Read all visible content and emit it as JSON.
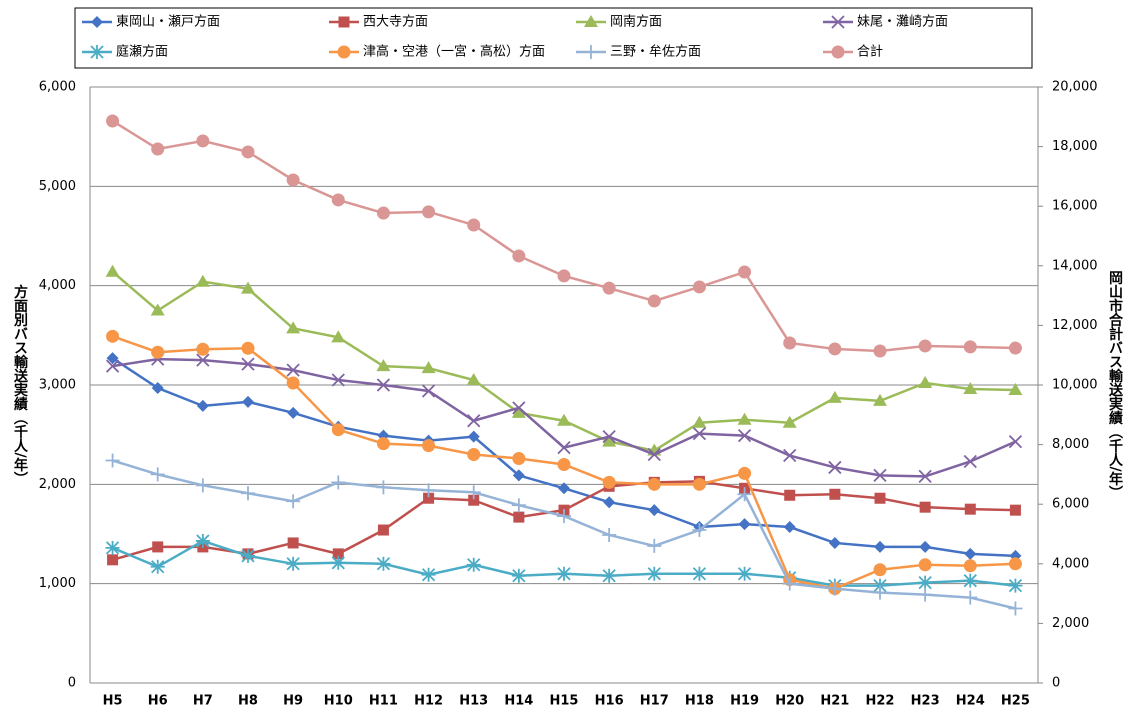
{
  "chart_data": {
    "type": "line",
    "categories": [
      "H5",
      "H6",
      "H7",
      "H8",
      "H9",
      "H10",
      "H11",
      "H12",
      "H13",
      "H14",
      "H15",
      "H16",
      "H17",
      "H18",
      "H19",
      "H20",
      "H21",
      "H22",
      "H23",
      "H24",
      "H25"
    ],
    "ylabel": "方面別バス輸送実績（千人/年）",
    "y2label": "岡山市合計バス輸送実績（千人/年）",
    "ylim": [
      0,
      6000
    ],
    "yticks": [
      0,
      {
        "value": 1000,
        "label": "1,000"
      },
      {
        "value": 2000,
        "label": "2,000"
      },
      {
        "value": 3000,
        "label": "3,000"
      },
      {
        "value": 4000,
        "label": "4,000"
      },
      {
        "value": 5000,
        "label": "5,000"
      },
      {
        "value": 6000,
        "label": "6,000"
      }
    ],
    "y2lim": [
      0,
      20000
    ],
    "y2ticks": [
      0,
      {
        "value": 2000,
        "label": "2,000"
      },
      {
        "value": 4000,
        "label": "4,000"
      },
      {
        "value": 6000,
        "label": "6,000"
      },
      {
        "value": 8000,
        "label": "8,000"
      },
      {
        "value": 10000,
        "label": "10,000"
      },
      {
        "value": 12000,
        "label": "12,000"
      },
      {
        "value": 14000,
        "label": "14,000"
      },
      {
        "value": 16000,
        "label": "16,000"
      },
      {
        "value": 18000,
        "label": "18,000"
      },
      {
        "value": 20000,
        "label": "20,000"
      }
    ],
    "grid": true,
    "legend": "top",
    "series": [
      {
        "name": "東岡山・瀬戸方面",
        "color": "#4472c4",
        "marker": "diamond",
        "values": [
          3270,
          2970,
          2790,
          2830,
          2720,
          2580,
          2490,
          2440,
          2480,
          2090,
          1960,
          1820,
          1740,
          1570,
          1600,
          1570,
          1410,
          1370,
          1370,
          1300,
          1280
        ]
      },
      {
        "name": "西大寺方面",
        "color": "#c0504d",
        "marker": "square",
        "values": [
          1240,
          1370,
          1370,
          1300,
          1410,
          1300,
          1540,
          1860,
          1840,
          1670,
          1740,
          1980,
          2020,
          2030,
          1960,
          1890,
          1900,
          1860,
          1770,
          1750,
          1740
        ]
      },
      {
        "name": "岡南方面",
        "color": "#9bbb59",
        "marker": "triangle",
        "values": [
          4140,
          3750,
          4040,
          3970,
          3570,
          3480,
          3190,
          3170,
          3050,
          2720,
          2640,
          2430,
          2340,
          2620,
          2650,
          2620,
          2870,
          2840,
          3020,
          2960,
          2950
        ]
      },
      {
        "name": "妹尾・灘崎方面",
        "color": "#8064a2",
        "marker": "x",
        "values": [
          3190,
          3260,
          3250,
          3210,
          3150,
          3050,
          3000,
          2940,
          2640,
          2770,
          2370,
          2480,
          2300,
          2510,
          2490,
          2290,
          2170,
          2090,
          2080,
          2230,
          2430
        ]
      },
      {
        "name": "庭瀬方面",
        "color": "#4bacc6",
        "marker": "asterisk",
        "values": [
          1360,
          1170,
          1430,
          1280,
          1200,
          1210,
          1200,
          1090,
          1190,
          1080,
          1100,
          1080,
          1100,
          1100,
          1100,
          1060,
          980,
          980,
          1010,
          1030,
          980
        ]
      },
      {
        "name": "津高・空港（一宮・高松）方面",
        "color": "#f79646",
        "marker": "circle",
        "values": [
          3490,
          3330,
          3360,
          3370,
          3020,
          2550,
          2410,
          2390,
          2300,
          2260,
          2200,
          2020,
          2000,
          2000,
          2110,
          1040,
          950,
          1140,
          1190,
          1180,
          1200
        ]
      },
      {
        "name": "三野・牟佐方面",
        "color": "#95b3d7",
        "marker": "plus",
        "values": [
          2240,
          2100,
          1990,
          1910,
          1830,
          2020,
          1970,
          1940,
          1920,
          1790,
          1680,
          1490,
          1380,
          1540,
          1900,
          1000,
          950,
          910,
          890,
          860,
          750
        ]
      },
      {
        "name": "合計",
        "color": "#d99694",
        "marker": "circle",
        "axis": "y2",
        "values": [
          18860,
          17920,
          18190,
          17820,
          16880,
          16210,
          15770,
          15810,
          15370,
          14330,
          13660,
          13250,
          12820,
          13290,
          13790,
          11410,
          11210,
          11140,
          11310,
          11280,
          11240
        ]
      }
    ]
  }
}
